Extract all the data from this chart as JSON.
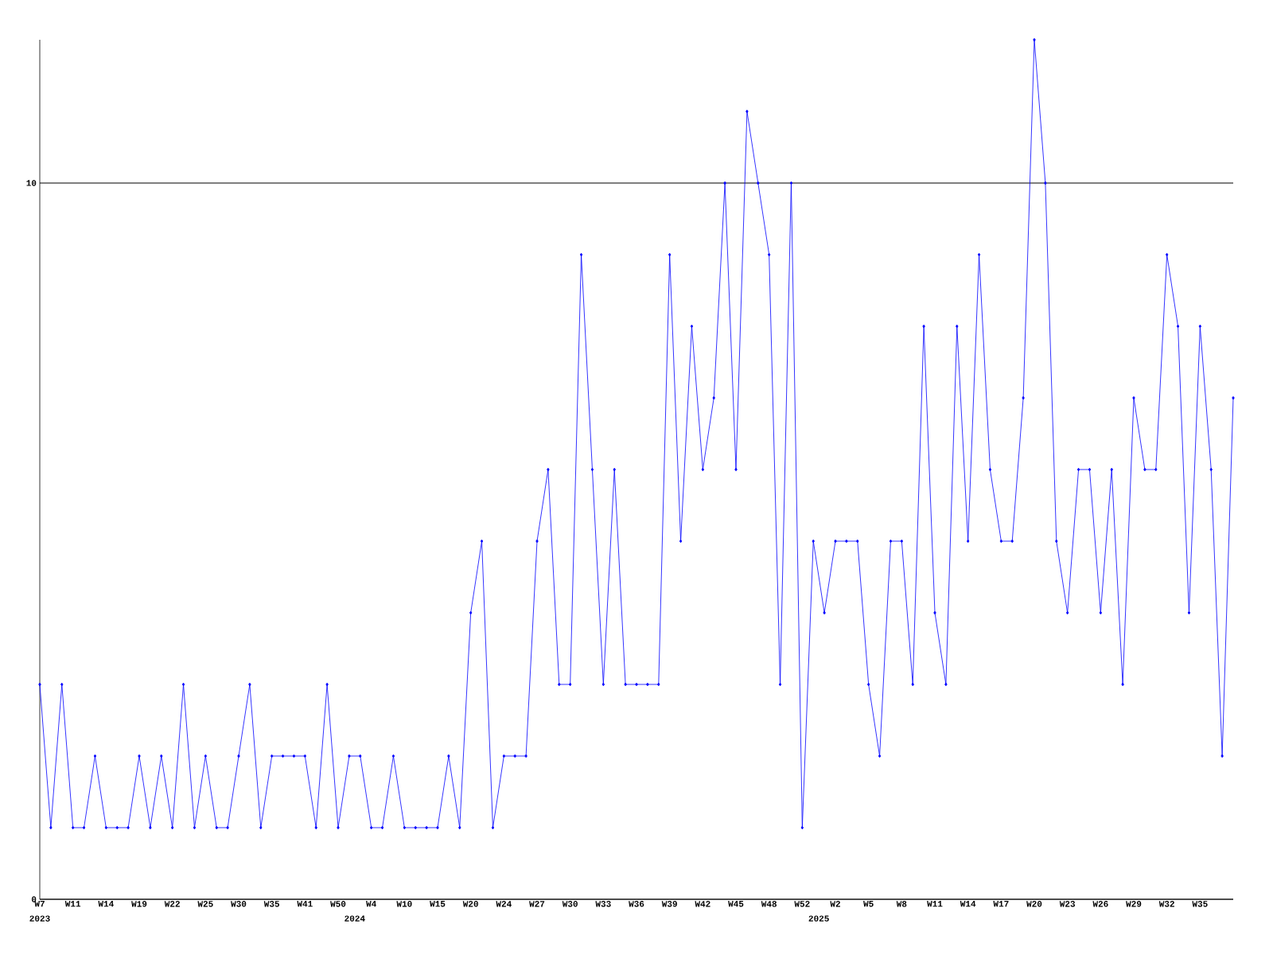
{
  "chart_data": {
    "type": "line",
    "categories": [
      "W7",
      null,
      null,
      "W11",
      null,
      null,
      "W14",
      null,
      null,
      "W19",
      null,
      null,
      "W22",
      null,
      null,
      "W25",
      null,
      null,
      "W30",
      null,
      null,
      "W35",
      null,
      null,
      "W41",
      null,
      null,
      "W50",
      null,
      null,
      "W4",
      null,
      null,
      "W10",
      null,
      null,
      "W15",
      null,
      null,
      "W20",
      null,
      null,
      "W24",
      null,
      null,
      "W27",
      null,
      null,
      "W30",
      null,
      null,
      "W33",
      null,
      null,
      "W36",
      null,
      null,
      "W39",
      null,
      null,
      "W42",
      null,
      null,
      "W45",
      null,
      null,
      "W48",
      null,
      null,
      "W52",
      null,
      null,
      "W2",
      null,
      null,
      "W5",
      null,
      null,
      "W8",
      null,
      null,
      "W11",
      null,
      null,
      "W14",
      null,
      null,
      "W17",
      null,
      null,
      "W20",
      null,
      null,
      "W23",
      null,
      null,
      "W26",
      null,
      null,
      "W29",
      null,
      null,
      "W32",
      null,
      null,
      "W35",
      null,
      null,
      null
    ],
    "series": [
      {
        "color": "#0000ff",
        "values": [
          3,
          1,
          3,
          1,
          1,
          2,
          1,
          1,
          1,
          2,
          1,
          2,
          1,
          3,
          1,
          2,
          1,
          1,
          2,
          3,
          1,
          2,
          2,
          2,
          2,
          1,
          3,
          1,
          2,
          2,
          1,
          1,
          2,
          1,
          1,
          1,
          1,
          2,
          1,
          4,
          5,
          1,
          2,
          2,
          2,
          5,
          6,
          3,
          3,
          9,
          6,
          3,
          6,
          3,
          3,
          3,
          3,
          9,
          5,
          8,
          6,
          7,
          10,
          6,
          11,
          10,
          9,
          3,
          10,
          1,
          5,
          4,
          5,
          5,
          5,
          3,
          2,
          5,
          5,
          3,
          8,
          4,
          3,
          8,
          5,
          9,
          6,
          5,
          5,
          7,
          12,
          10,
          5,
          4,
          6,
          6,
          4,
          6,
          3,
          7,
          6,
          6,
          9,
          8,
          4,
          8,
          6,
          2,
          7
        ]
      }
    ],
    "ylim": [
      0,
      12
    ],
    "yticks": [
      0,
      10
    ],
    "grid": "y",
    "marker": "diamond",
    "line_style": "solid",
    "annotations": [
      "2023",
      "2024",
      "2025"
    ]
  }
}
